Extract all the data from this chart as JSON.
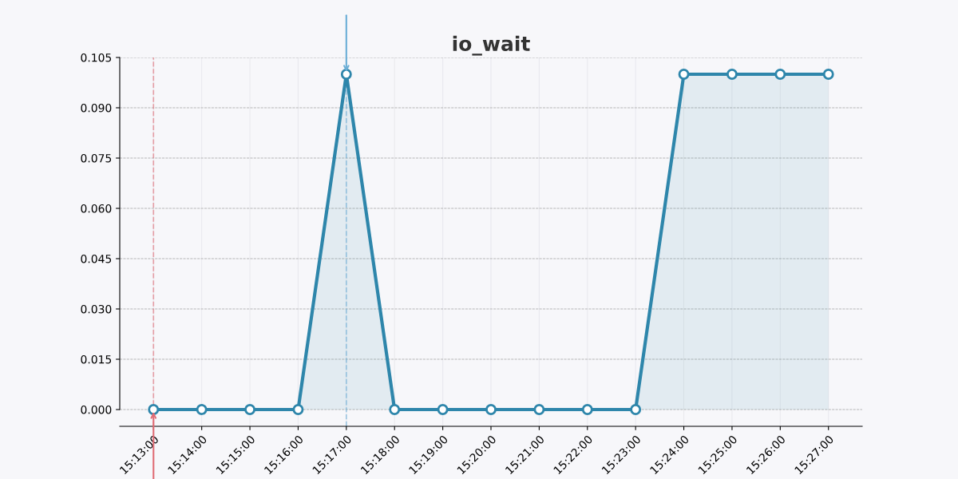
{
  "chart_data": {
    "type": "area",
    "title": "io_wait",
    "categories": [
      "15:13:00",
      "15:14:00",
      "15:15:00",
      "15:16:00",
      "15:17:00",
      "15:18:00",
      "15:19:00",
      "15:20:00",
      "15:21:00",
      "15:22:00",
      "15:23:00",
      "15:24:00",
      "15:25:00",
      "15:26:00",
      "15:27:00"
    ],
    "series": [
      {
        "color": "#2e86ab",
        "values": [
          0,
          0,
          0,
          0,
          0.1,
          0,
          0,
          0,
          0,
          0,
          0,
          0.1,
          0.1,
          0.1,
          0.1
        ]
      }
    ],
    "ylim": [
      -0.005,
      0.105
    ],
    "yticks": [
      {
        "value": 0,
        "label": "0.000"
      },
      {
        "value": 0.015,
        "label": "0.015"
      },
      {
        "value": 0.03,
        "label": "0.030"
      },
      {
        "value": 0.045,
        "label": "0.045"
      },
      {
        "value": 0.06,
        "label": "0.060"
      },
      {
        "value": 0.075,
        "label": "0.075"
      },
      {
        "value": 0.09,
        "label": "0.090"
      },
      {
        "value": 0.105,
        "label": "0.105"
      }
    ],
    "ref_lines": [
      {
        "axis": "x",
        "value": "15:13:00",
        "color": "#e06c75",
        "line_style": "dashed"
      },
      {
        "axis": "x",
        "value": "15:17:00",
        "color": "#6baed6",
        "line_style": "dashed"
      }
    ],
    "grid": true,
    "marker": "circle",
    "line_style": "solid"
  }
}
